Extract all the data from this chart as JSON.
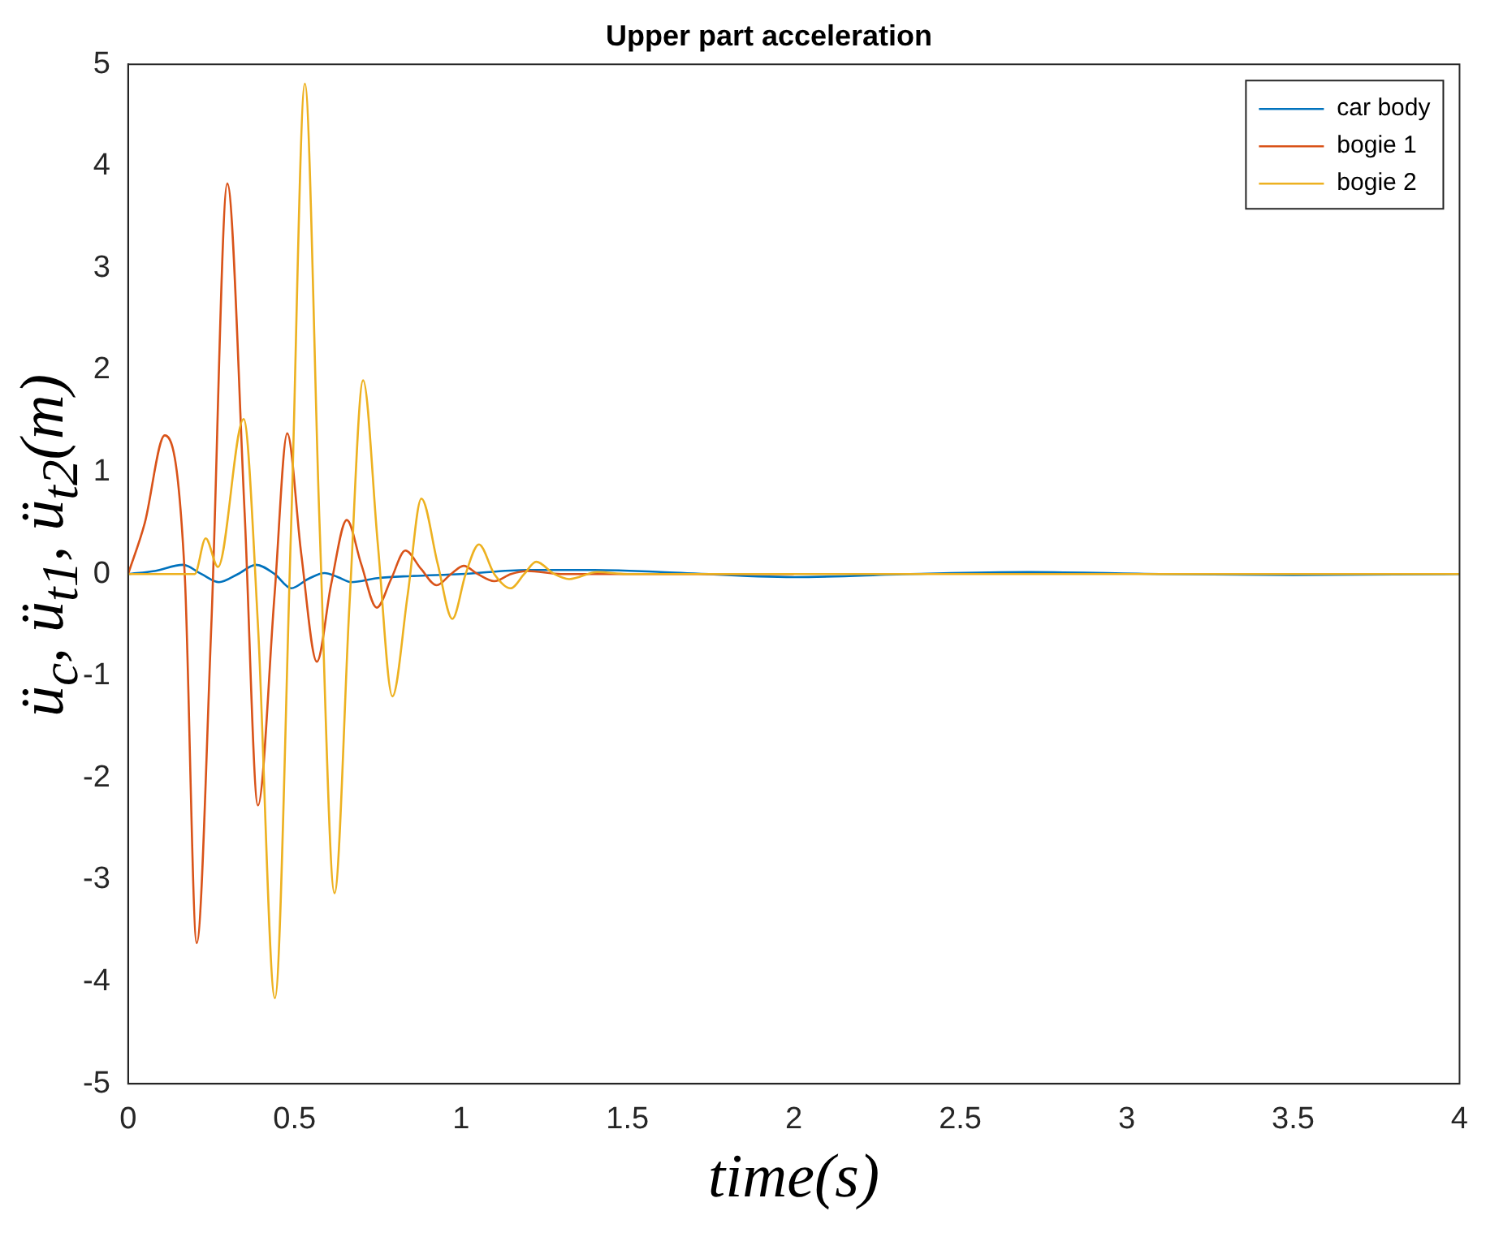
{
  "chart_data": {
    "type": "line",
    "title": "Upper part acceleration",
    "xlabel": "time(s)",
    "ylabel": "ü$_{c}$, ü$_{t1}$, ü$_{t2}$(m)",
    "xlim": [
      0,
      4
    ],
    "xticks": [
      0,
      0.5,
      1,
      1.5,
      2,
      2.5,
      3,
      3.5,
      4
    ],
    "ylim": [
      -5,
      5
    ],
    "yticks": [
      -5,
      -4,
      -3,
      -2,
      -1,
      0,
      1,
      2,
      3,
      4,
      5
    ],
    "grid": false,
    "legend": "top right",
    "marker": "none",
    "line_style": "solid",
    "series": [
      {
        "name": "car body",
        "color": "#0072bd",
        "x": [
          0,
          0.08,
          0.165,
          0.22,
          0.273,
          0.33,
          0.384,
          0.44,
          0.49,
          0.54,
          0.59,
          0.63,
          0.67,
          0.75,
          0.85,
          1,
          1.2,
          1.4,
          1.6,
          2,
          2.35,
          2.7,
          3.1,
          3.5,
          4
        ],
        "values": [
          0,
          0.03,
          0.09,
          0,
          -0.08,
          0,
          0.09,
          0,
          -0.14,
          -0.05,
          0.01,
          -0.03,
          -0.08,
          -0.04,
          -0.02,
          0,
          0.04,
          0.04,
          0.02,
          -0.03,
          0,
          0.02,
          0,
          -0.01,
          0
        ]
      },
      {
        "name": "bogie 1",
        "color": "#d95319",
        "x": [
          0,
          0.05,
          0.11,
          0.17,
          0.206,
          0.25,
          0.298,
          0.35,
          0.39,
          0.44,
          0.478,
          0.52,
          0.567,
          0.61,
          0.657,
          0.7,
          0.747,
          0.79,
          0.833,
          0.88,
          0.927,
          0.97,
          1.008,
          1.05,
          1.1,
          1.15,
          1.2,
          1.3,
          1.5,
          2
        ],
        "values": [
          0,
          0.5,
          1.36,
          0,
          -3.62,
          -0.5,
          3.83,
          0.6,
          -2.27,
          -0.2,
          1.38,
          0.2,
          -0.86,
          -0.1,
          0.53,
          0.1,
          -0.33,
          -0.05,
          0.23,
          0.05,
          -0.11,
          0,
          0.08,
          0,
          -0.07,
          0,
          0.03,
          0,
          0,
          0
        ]
      },
      {
        "name": "bogie 2",
        "color": "#edb120",
        "x": [
          0,
          0.2,
          0.233,
          0.27,
          0.347,
          0.39,
          0.441,
          0.49,
          0.531,
          0.575,
          0.62,
          0.665,
          0.706,
          0.75,
          0.794,
          0.84,
          0.881,
          0.93,
          0.974,
          1.014,
          1.054,
          1.1,
          1.149,
          1.19,
          1.226,
          1.28,
          1.325,
          1.41,
          1.5,
          2,
          3,
          4
        ],
        "values": [
          0,
          0,
          0.35,
          0.07,
          1.52,
          -0.5,
          -4.16,
          0.5,
          4.81,
          0.5,
          -3.13,
          -0.3,
          1.9,
          0.3,
          -1.2,
          -0.2,
          0.74,
          0.1,
          -0.44,
          0,
          0.29,
          0,
          -0.14,
          0,
          0.12,
          0,
          -0.05,
          0.02,
          0,
          0,
          0,
          0
        ]
      }
    ]
  }
}
